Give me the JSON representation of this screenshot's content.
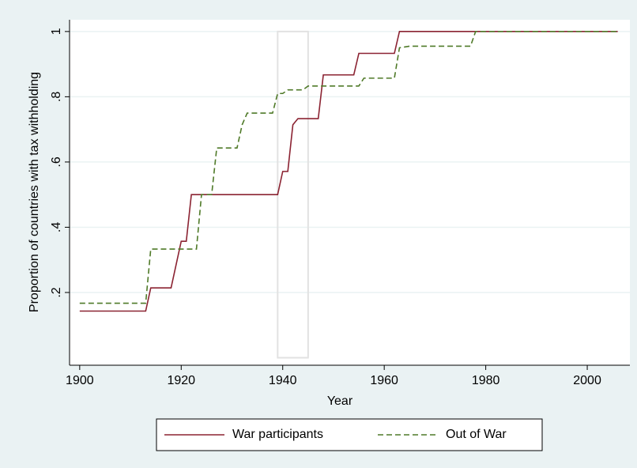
{
  "chart_data": {
    "type": "line",
    "x_label": "Year",
    "y_label": "Proportion of countries with tax withholding",
    "x": [],
    "series": [
      {
        "name": "War participants",
        "color": "#8b2332",
        "dash": false,
        "x": [
          1900,
          1913,
          1914,
          1918,
          1920,
          1921,
          1922,
          1939,
          1940,
          1941,
          1942,
          1943,
          1947,
          1948,
          1954,
          1955,
          1962,
          1963,
          2006
        ],
        "values": [
          0.143,
          0.143,
          0.214,
          0.214,
          0.357,
          0.357,
          0.5,
          0.5,
          0.571,
          0.571,
          0.714,
          0.733,
          0.733,
          0.867,
          0.867,
          0.933,
          0.933,
          1,
          1
        ]
      },
      {
        "name": "Out of War",
        "color": "#4f7a28",
        "dash": true,
        "x": [
          1900,
          1913,
          1914,
          1923,
          1924,
          1926,
          1927,
          1931,
          1932,
          1933,
          1938,
          1939,
          1940,
          1941,
          1944,
          1945,
          1955,
          1956,
          1962,
          1963,
          1965,
          1977,
          1978,
          2006
        ],
        "values": [
          0.167,
          0.167,
          0.333,
          0.333,
          0.5,
          0.5,
          0.643,
          0.643,
          0.714,
          0.75,
          0.75,
          0.81,
          0.81,
          0.821,
          0.821,
          0.833,
          0.833,
          0.857,
          0.857,
          0.95,
          0.955,
          0.955,
          1,
          1
        ]
      }
    ],
    "highlight_x": [
      1939,
      1945
    ],
    "xlim": [
      1898,
      2008.4
    ],
    "ylim": [
      -0.023,
      1.036
    ],
    "xticks": [
      1900,
      1920,
      1940,
      1960,
      1980,
      2000
    ],
    "yticks": [
      {
        "value": 0.2,
        "label": ".2"
      },
      {
        "value": 0.4,
        "label": ".4"
      },
      {
        "value": 0.6,
        "label": ".6"
      },
      {
        "value": 0.8,
        "label": ".8"
      },
      1
    ],
    "grid": true
  }
}
